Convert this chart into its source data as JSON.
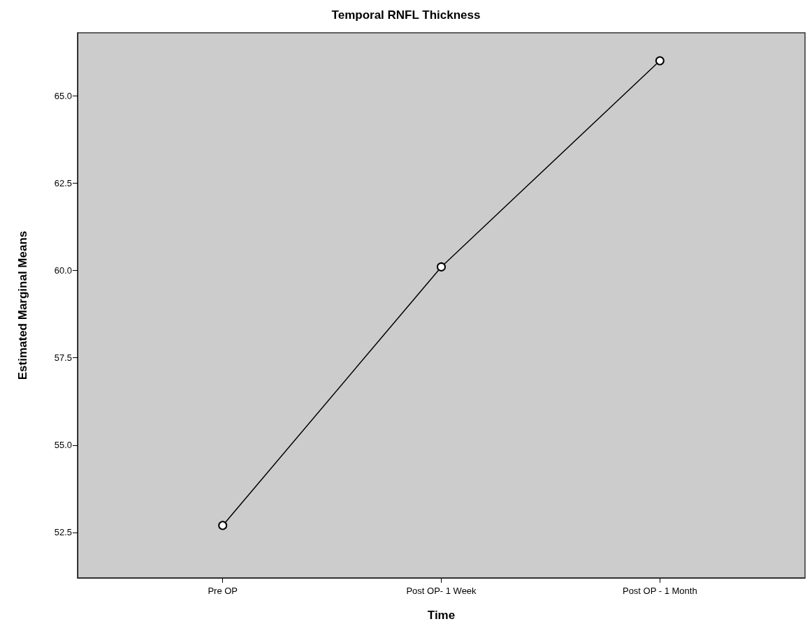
{
  "chart_data": {
    "type": "line",
    "title": "Temporal RNFL Thickness",
    "xlabel": "Time",
    "ylabel": "Estimated Marginal Means",
    "categories": [
      "Pre OP",
      "Post OP- 1 Week",
      "Post OP - 1 Month"
    ],
    "series": [
      {
        "color": "#000000",
        "values": [
          52.7,
          60.1,
          66.0
        ]
      }
    ],
    "ylim": [
      51.2,
      66.8
    ],
    "yticks": [
      {
        "value": 52.5,
        "label": "52.5"
      },
      {
        "value": 55,
        "label": "55.0"
      },
      {
        "value": 57.5,
        "label": "57.5"
      },
      {
        "value": 60,
        "label": "60.0"
      },
      {
        "value": 62.5,
        "label": "62.5"
      },
      {
        "value": 65,
        "label": "65.0"
      }
    ],
    "grid": false,
    "marker": "circle",
    "line_style": "solid"
  }
}
